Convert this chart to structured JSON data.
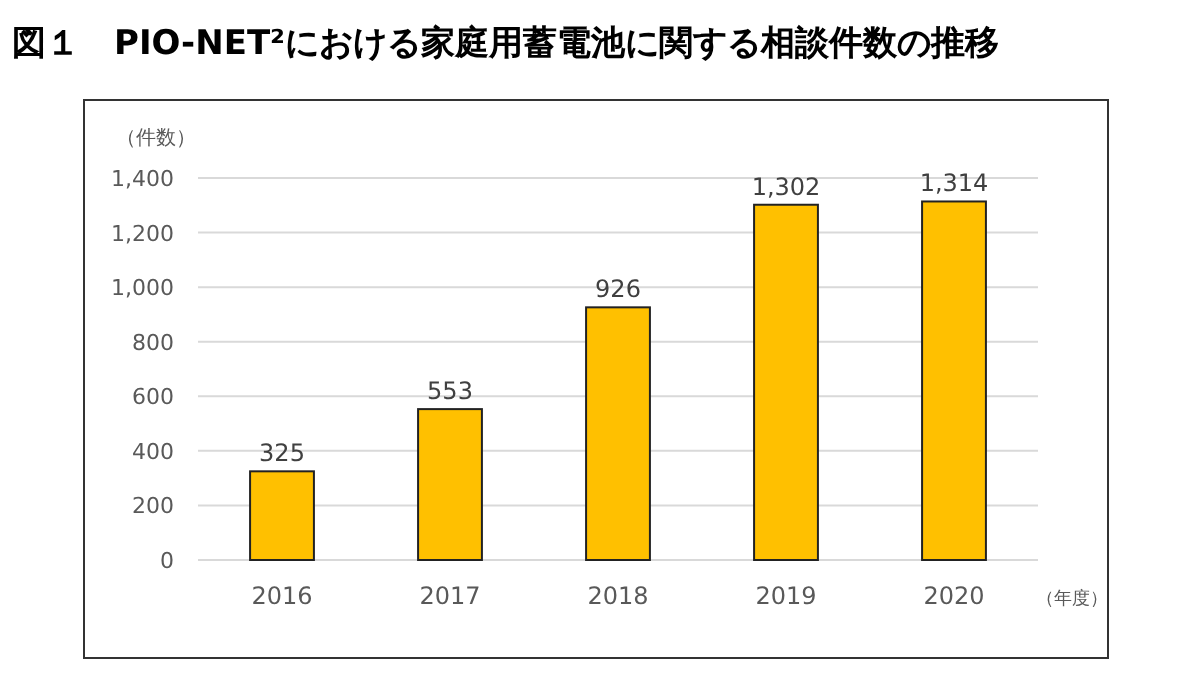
{
  "chart_data": {
    "type": "bar",
    "title": "図１　PIO-NET²における家庭用蓄電池に関する相談件数の推移",
    "ylabel": "（件数）",
    "xlabel": "（年度）",
    "categories": [
      "2016",
      "2017",
      "2018",
      "2019",
      "2020"
    ],
    "values": [
      325,
      553,
      926,
      1302,
      1314
    ],
    "value_labels": [
      "325",
      "553",
      "926",
      "1,302",
      "1,314"
    ],
    "color": "#ffc000",
    "ylim": [
      0,
      1400
    ],
    "yticks": [
      0,
      200,
      400,
      600,
      800,
      {
        "value": 1000,
        "label": "1,000"
      },
      {
        "value": 1200,
        "label": "1,200"
      },
      {
        "value": 1400,
        "label": "1,400"
      }
    ],
    "grid": "y"
  }
}
